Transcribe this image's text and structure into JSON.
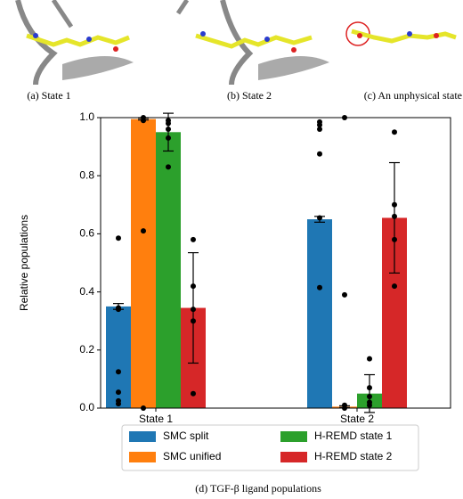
{
  "panels": [
    {
      "caption": "(a) State 1"
    },
    {
      "caption": "(b) State 2"
    },
    {
      "caption": "(c) An unphysical state"
    }
  ],
  "caption": "(d) TGF-β ligand populations",
  "chart_data": {
    "type": "bar",
    "ylabel": "Relative populations",
    "categories": [
      "State 1",
      "State 2"
    ],
    "series": [
      {
        "name": "SMC split",
        "color": "#1f77b4",
        "values": [
          0.35,
          0.65
        ],
        "errors": [
          0.01,
          0.01
        ],
        "points": [
          [
            0.585,
            0.345,
            0.34,
            0.125,
            0.055,
            0.025,
            0.015
          ],
          [
            0.985,
            0.975,
            0.96,
            0.875,
            0.655,
            0.415
          ]
        ]
      },
      {
        "name": "SMC unified",
        "color": "#ff7f0e",
        "values": [
          0.995,
          0.005
        ],
        "errors": [
          0.003,
          0.003
        ],
        "points": [
          [
            1.0,
            0.99,
            0.61,
            0.0
          ],
          [
            0.0,
            0.01,
            0.39,
            1.0
          ]
        ]
      },
      {
        "name": "H-REMD state 1",
        "color": "#2ca02c",
        "values": [
          0.95,
          0.05
        ],
        "errors": [
          0.065,
          0.065
        ],
        "points": [
          [
            0.99,
            0.98,
            0.96,
            0.93,
            0.83
          ],
          [
            0.17,
            0.07,
            0.04,
            0.02,
            0.01
          ]
        ]
      },
      {
        "name": "H-REMD state 2",
        "color": "#d62728",
        "values": [
          0.345,
          0.655
        ],
        "errors": [
          0.19,
          0.19
        ],
        "points": [
          [
            0.58,
            0.42,
            0.34,
            0.3,
            0.05
          ],
          [
            0.95,
            0.7,
            0.66,
            0.58,
            0.42
          ]
        ]
      }
    ],
    "ylim": [
      0,
      1
    ],
    "yticks": [
      {
        "value": 0,
        "label": "0.0"
      },
      0.2,
      0.4,
      0.6,
      0.8,
      {
        "value": 1,
        "label": "1.0"
      }
    ]
  }
}
